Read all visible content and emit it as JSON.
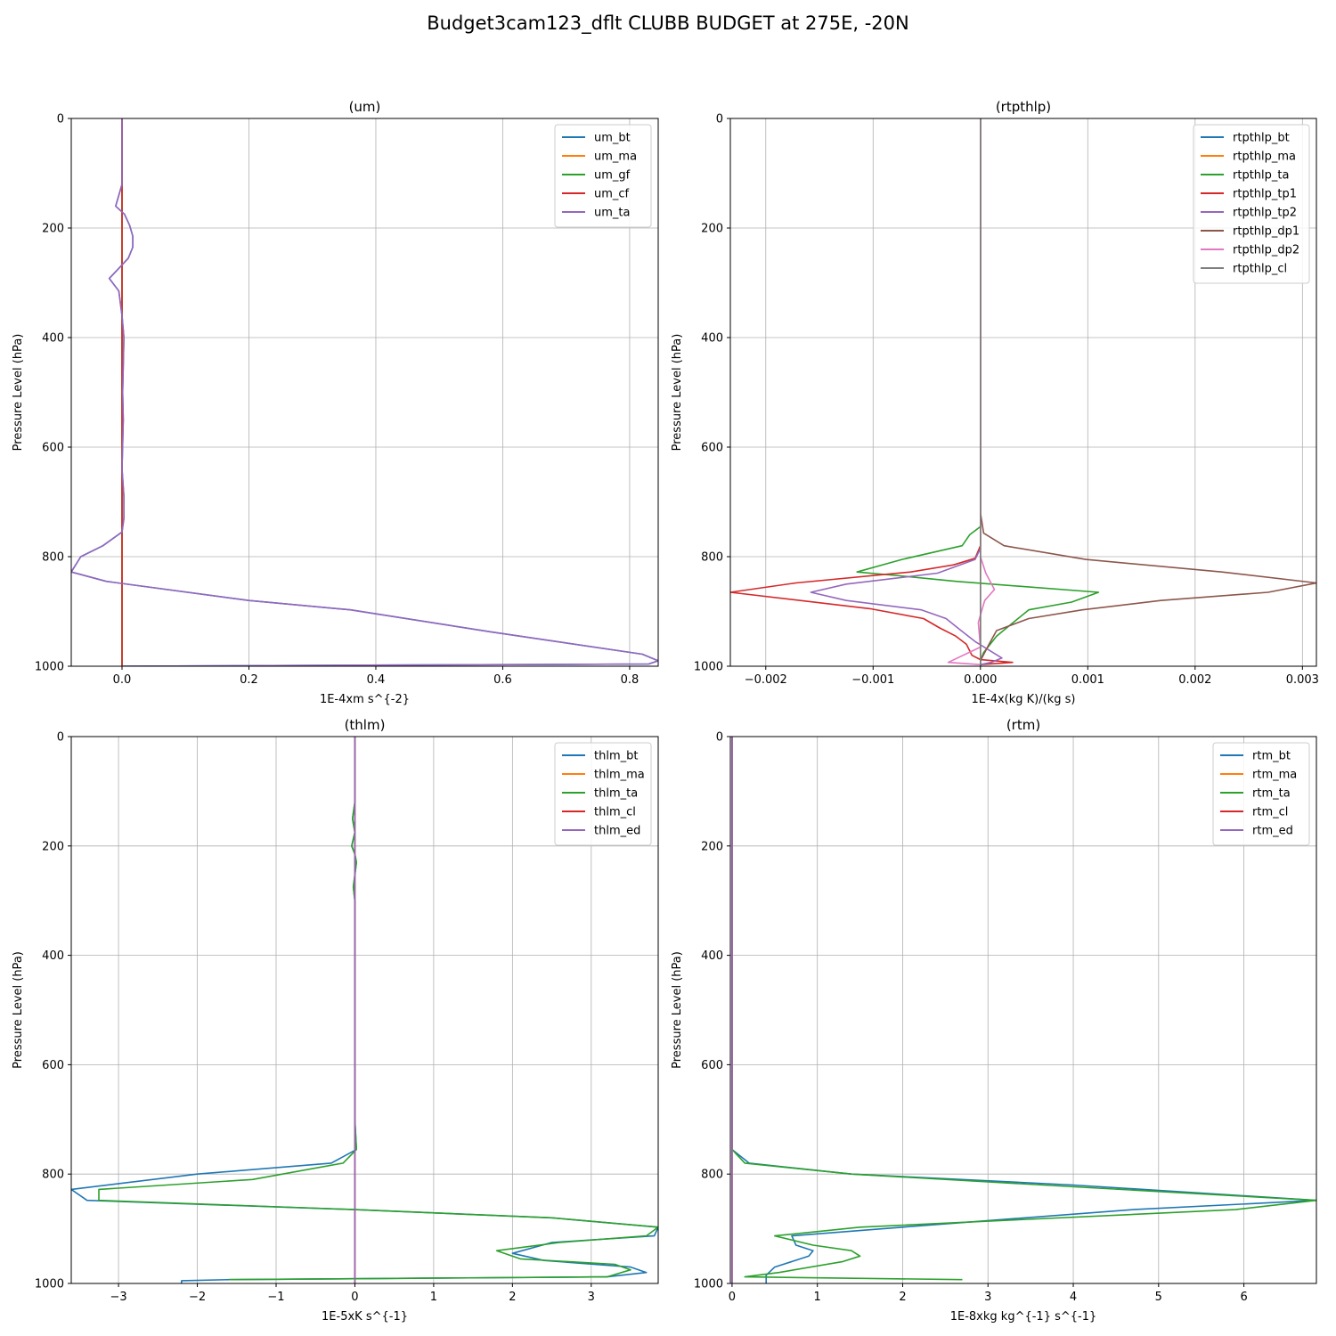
{
  "figure": {
    "title": "Budget3cam123_dflt CLUBB BUDGET at 275E, -20N"
  },
  "chart_data": [
    {
      "type": "line",
      "title": "(um)",
      "xlabel": "1E-4xm s^{-2}",
      "ylabel": "Pressure Level (hPa)",
      "xlim": [
        -0.08,
        0.845
      ],
      "ylim": [
        1000,
        0
      ],
      "xticks": [
        0.0,
        0.2,
        0.4,
        0.6,
        0.8
      ],
      "xtick_labels": [
        "0.0",
        "0.2",
        "0.4",
        "0.6",
        "0.8"
      ],
      "yticks": [
        0,
        200,
        400,
        600,
        800,
        1000
      ],
      "grid": true,
      "legend_position": "top-right",
      "series": [
        {
          "name": "um_bt",
          "color": "#1f77b4",
          "x": [
            0.0,
            0.0,
            -0.01,
            0.004,
            0.012,
            0.017,
            0.017,
            0.01,
            -0.006,
            -0.02,
            -0.005,
            0.0,
            0.003,
            0.002,
            0.001,
            0.002,
            0.0,
            0.003,
            0.003,
            0.0,
            -0.03,
            -0.065,
            -0.08,
            -0.025,
            0.2,
            0.36,
            0.58,
            0.82,
            0.845,
            0.83,
            0.0
          ],
          "y": [
            0,
            120,
            160,
            175,
            195,
            215,
            235,
            255,
            275,
            292,
            315,
            360,
            400,
            450,
            500,
            550,
            640,
            690,
            730,
            755,
            780,
            800,
            828,
            845,
            880,
            897,
            937,
            978,
            990,
            996,
            1000
          ]
        },
        {
          "name": "um_ma",
          "color": "#ff7f0e",
          "x": [
            0.0,
            0.0,
            0.0
          ],
          "y": [
            0,
            500,
            1000
          ]
        },
        {
          "name": "um_gf",
          "color": "#2ca02c",
          "x": [
            0.0,
            0.0,
            0.0
          ],
          "y": [
            0,
            500,
            1000
          ]
        },
        {
          "name": "um_cf",
          "color": "#d62728",
          "x": [
            0.0,
            0.0,
            0.0
          ],
          "y": [
            0,
            500,
            1000
          ]
        },
        {
          "name": "um_ta",
          "color": "#9467bd",
          "x": [
            0.0,
            0.0,
            -0.01,
            0.004,
            0.012,
            0.017,
            0.017,
            0.01,
            -0.006,
            -0.02,
            -0.005,
            0.0,
            0.003,
            0.002,
            0.001,
            0.002,
            0.0,
            0.003,
            0.003,
            0.0,
            -0.03,
            -0.065,
            -0.08,
            -0.025,
            0.2,
            0.36,
            0.58,
            0.82,
            0.845,
            0.83,
            0.0
          ],
          "y": [
            0,
            120,
            160,
            175,
            195,
            215,
            235,
            255,
            275,
            292,
            315,
            360,
            400,
            450,
            500,
            550,
            640,
            690,
            730,
            755,
            780,
            800,
            828,
            845,
            880,
            897,
            937,
            978,
            990,
            996,
            1000
          ]
        }
      ]
    },
    {
      "type": "line",
      "title": "(rtpthlp)",
      "xlabel": "1E-4x(kg K)/(kg s)",
      "ylabel": "Pressure Level (hPa)",
      "xlim": [
        -0.00233,
        0.00313
      ],
      "ylim": [
        1000,
        0
      ],
      "xticks": [
        -0.002,
        -0.001,
        0.0,
        0.001,
        0.002,
        0.003
      ],
      "xtick_labels": [
        "−0.002",
        "−0.001",
        "0.000",
        "0.001",
        "0.002",
        "0.003"
      ],
      "yticks": [
        0,
        200,
        400,
        600,
        800,
        1000
      ],
      "grid": true,
      "legend_position": "top-right",
      "series": [
        {
          "name": "rtpthlp_bt",
          "color": "#1f77b4",
          "x": [
            0.0,
            0.0,
            0.0
          ],
          "y": [
            0,
            500,
            1000
          ]
        },
        {
          "name": "rtpthlp_ma",
          "color": "#ff7f0e",
          "x": [
            0.0,
            0.0,
            0.0
          ],
          "y": [
            0,
            500,
            1000
          ]
        },
        {
          "name": "rtpthlp_ta",
          "color": "#2ca02c",
          "x": [
            0.0,
            0.0,
            0.0,
            -0.0001,
            -0.00017,
            -0.00073,
            -0.00115,
            -0.00075,
            -0.00023,
            0.0011,
            0.00085,
            0.00045,
            0.00035,
            0.00015,
            3e-05,
            0.0,
            0.0
          ],
          "y": [
            0,
            700,
            745,
            760,
            780,
            805,
            828,
            835,
            845,
            865,
            883,
            897,
            913,
            945,
            975,
            990,
            1000
          ]
        },
        {
          "name": "rtpthlp_tp1",
          "color": "#d62728",
          "x": [
            0.0,
            0.0,
            -5e-05,
            -0.00025,
            -0.00065,
            -0.00172,
            -0.00233,
            -0.00103,
            -0.00053,
            -0.00038,
            -0.00023,
            -0.00013,
            -8e-05,
            0.0,
            0.0003,
            0.0,
            0.0
          ],
          "y": [
            0,
            780,
            803,
            815,
            828,
            848,
            865,
            895,
            913,
            930,
            945,
            960,
            980,
            988,
            993,
            997,
            1000
          ]
        },
        {
          "name": "rtpthlp_tp2",
          "color": "#9467bd",
          "x": [
            0.0,
            0.0,
            -5e-05,
            -0.0004,
            -0.00125,
            -0.00158,
            -0.00125,
            -0.00055,
            -0.00032,
            -0.00018,
            -5e-05,
            0.0002,
            0.0001,
            0.0,
            0.0
          ],
          "y": [
            0,
            785,
            805,
            830,
            850,
            865,
            880,
            897,
            913,
            935,
            955,
            985,
            993,
            997,
            1000
          ]
        },
        {
          "name": "rtpthlp_dp1",
          "color": "#8c564b",
          "x": [
            0.0,
            0.0,
            3e-05,
            0.00022,
            0.00098,
            0.00225,
            0.00313,
            0.00268,
            0.00168,
            0.00095,
            0.00045,
            0.00015,
            8e-05,
            0.0,
            0.0
          ],
          "y": [
            0,
            720,
            757,
            780,
            805,
            828,
            848,
            865,
            880,
            897,
            913,
            935,
            960,
            990,
            1000
          ]
        },
        {
          "name": "rtpthlp_dp2",
          "color": "#e377c2",
          "x": [
            0.0,
            0.0,
            5e-05,
            0.00013,
            4e-05,
            -2e-05,
            0.0,
            -0.0003,
            0.0,
            0.0
          ],
          "y": [
            0,
            800,
            830,
            860,
            880,
            920,
            965,
            993,
            997,
            1000
          ]
        },
        {
          "name": "rtpthlp_cl",
          "color": "#7f7f7f",
          "x": [
            0.0,
            0.0,
            0.0
          ],
          "y": [
            0,
            500,
            1000
          ]
        }
      ]
    },
    {
      "type": "line",
      "title": "(thlm)",
      "xlabel": "1E-5xK s^{-1}",
      "ylabel": "Pressure Level (hPa)",
      "xlim": [
        -3.6,
        3.85
      ],
      "ylim": [
        1000,
        0
      ],
      "xticks": [
        -3,
        -2,
        -1,
        0,
        1,
        2,
        3
      ],
      "xtick_labels": [
        "−3",
        "−2",
        "−1",
        "0",
        "1",
        "2",
        "3"
      ],
      "yticks": [
        0,
        200,
        400,
        600,
        800,
        1000
      ],
      "grid": true,
      "legend_position": "top-right",
      "series": [
        {
          "name": "thlm_bt",
          "color": "#1f77b4",
          "x": [
            0.0,
            0.0,
            -0.03,
            0.0,
            -0.04,
            0.0,
            0.02,
            -0.02,
            0.0,
            0.0,
            0.02,
            -0.3,
            -2.0,
            -3.6,
            -3.4,
            0.0,
            2.5,
            3.85,
            3.8,
            2.5,
            2.0,
            2.4,
            3.5,
            3.7,
            3.2,
            -1.6,
            -2.2,
            -2.2
          ],
          "y": [
            0,
            120,
            150,
            175,
            200,
            215,
            230,
            275,
            300,
            700,
            755,
            780,
            800,
            828,
            848,
            865,
            880,
            897,
            913,
            925,
            945,
            958,
            970,
            980,
            988,
            993,
            995,
            1000
          ]
        },
        {
          "name": "thlm_ma",
          "color": "#ff7f0e",
          "x": [
            0.0,
            0.0,
            0.0
          ],
          "y": [
            0,
            500,
            1000
          ]
        },
        {
          "name": "thlm_ta",
          "color": "#2ca02c",
          "x": [
            0.0,
            0.0,
            -0.03,
            0.0,
            -0.04,
            0.0,
            0.02,
            -0.02,
            0.0,
            0.0,
            0.02,
            -0.15,
            -1.3,
            -3.25,
            -3.25,
            0.0,
            2.5,
            3.85,
            3.7,
            2.6,
            1.8,
            2.1,
            3.3,
            3.5,
            3.2,
            -1.6
          ],
          "y": [
            0,
            120,
            150,
            175,
            200,
            215,
            230,
            275,
            300,
            700,
            755,
            780,
            810,
            828,
            848,
            865,
            880,
            897,
            913,
            925,
            940,
            955,
            965,
            975,
            988,
            993
          ]
        },
        {
          "name": "thlm_cl",
          "color": "#d62728",
          "x": [
            0.0,
            0.0,
            0.0
          ],
          "y": [
            0,
            500,
            1000
          ]
        },
        {
          "name": "thlm_ed",
          "color": "#9467bd",
          "x": [
            0.0,
            0.0,
            0.0
          ],
          "y": [
            0,
            500,
            1000
          ]
        }
      ]
    },
    {
      "type": "line",
      "title": "(rtm)",
      "xlabel": "1E-8xkg kg^{-1} s^{-1}",
      "ylabel": "Pressure Level (hPa)",
      "xlim": [
        -0.02,
        6.85
      ],
      "ylim": [
        1000,
        0
      ],
      "xticks": [
        0,
        1,
        2,
        3,
        4,
        5,
        6
      ],
      "xtick_labels": [
        "0",
        "1",
        "2",
        "3",
        "4",
        "5",
        "6"
      ],
      "yticks": [
        0,
        200,
        400,
        600,
        800,
        1000
      ],
      "grid": true,
      "legend_position": "top-right",
      "series": [
        {
          "name": "rtm_bt",
          "color": "#1f77b4",
          "x": [
            0.0,
            0.0,
            0.2,
            1.4,
            4.0,
            6.85,
            4.7,
            2.0,
            0.7,
            0.75,
            0.95,
            0.9,
            0.5,
            0.4,
            0.4
          ],
          "y": [
            0,
            755,
            780,
            800,
            820,
            848,
            865,
            897,
            913,
            930,
            940,
            950,
            970,
            985,
            1000
          ]
        },
        {
          "name": "rtm_ma",
          "color": "#ff7f0e",
          "x": [
            0.0,
            0.0,
            0.0
          ],
          "y": [
            0,
            500,
            1000
          ]
        },
        {
          "name": "rtm_ta",
          "color": "#2ca02c",
          "x": [
            0.0,
            0.0,
            0.15,
            1.4,
            4.2,
            6.85,
            5.9,
            1.5,
            0.5,
            0.95,
            1.4,
            1.5,
            1.3,
            0.55,
            0.15,
            2.7
          ],
          "y": [
            0,
            755,
            780,
            800,
            825,
            848,
            865,
            897,
            913,
            930,
            940,
            950,
            960,
            980,
            988,
            993
          ]
        },
        {
          "name": "rtm_cl",
          "color": "#d62728",
          "x": [
            0.0,
            0.0,
            0.0
          ],
          "y": [
            0,
            500,
            1000
          ]
        },
        {
          "name": "rtm_ed",
          "color": "#9467bd",
          "x": [
            0.0,
            0.0,
            0.0
          ],
          "y": [
            0,
            500,
            1000
          ]
        }
      ]
    }
  ]
}
